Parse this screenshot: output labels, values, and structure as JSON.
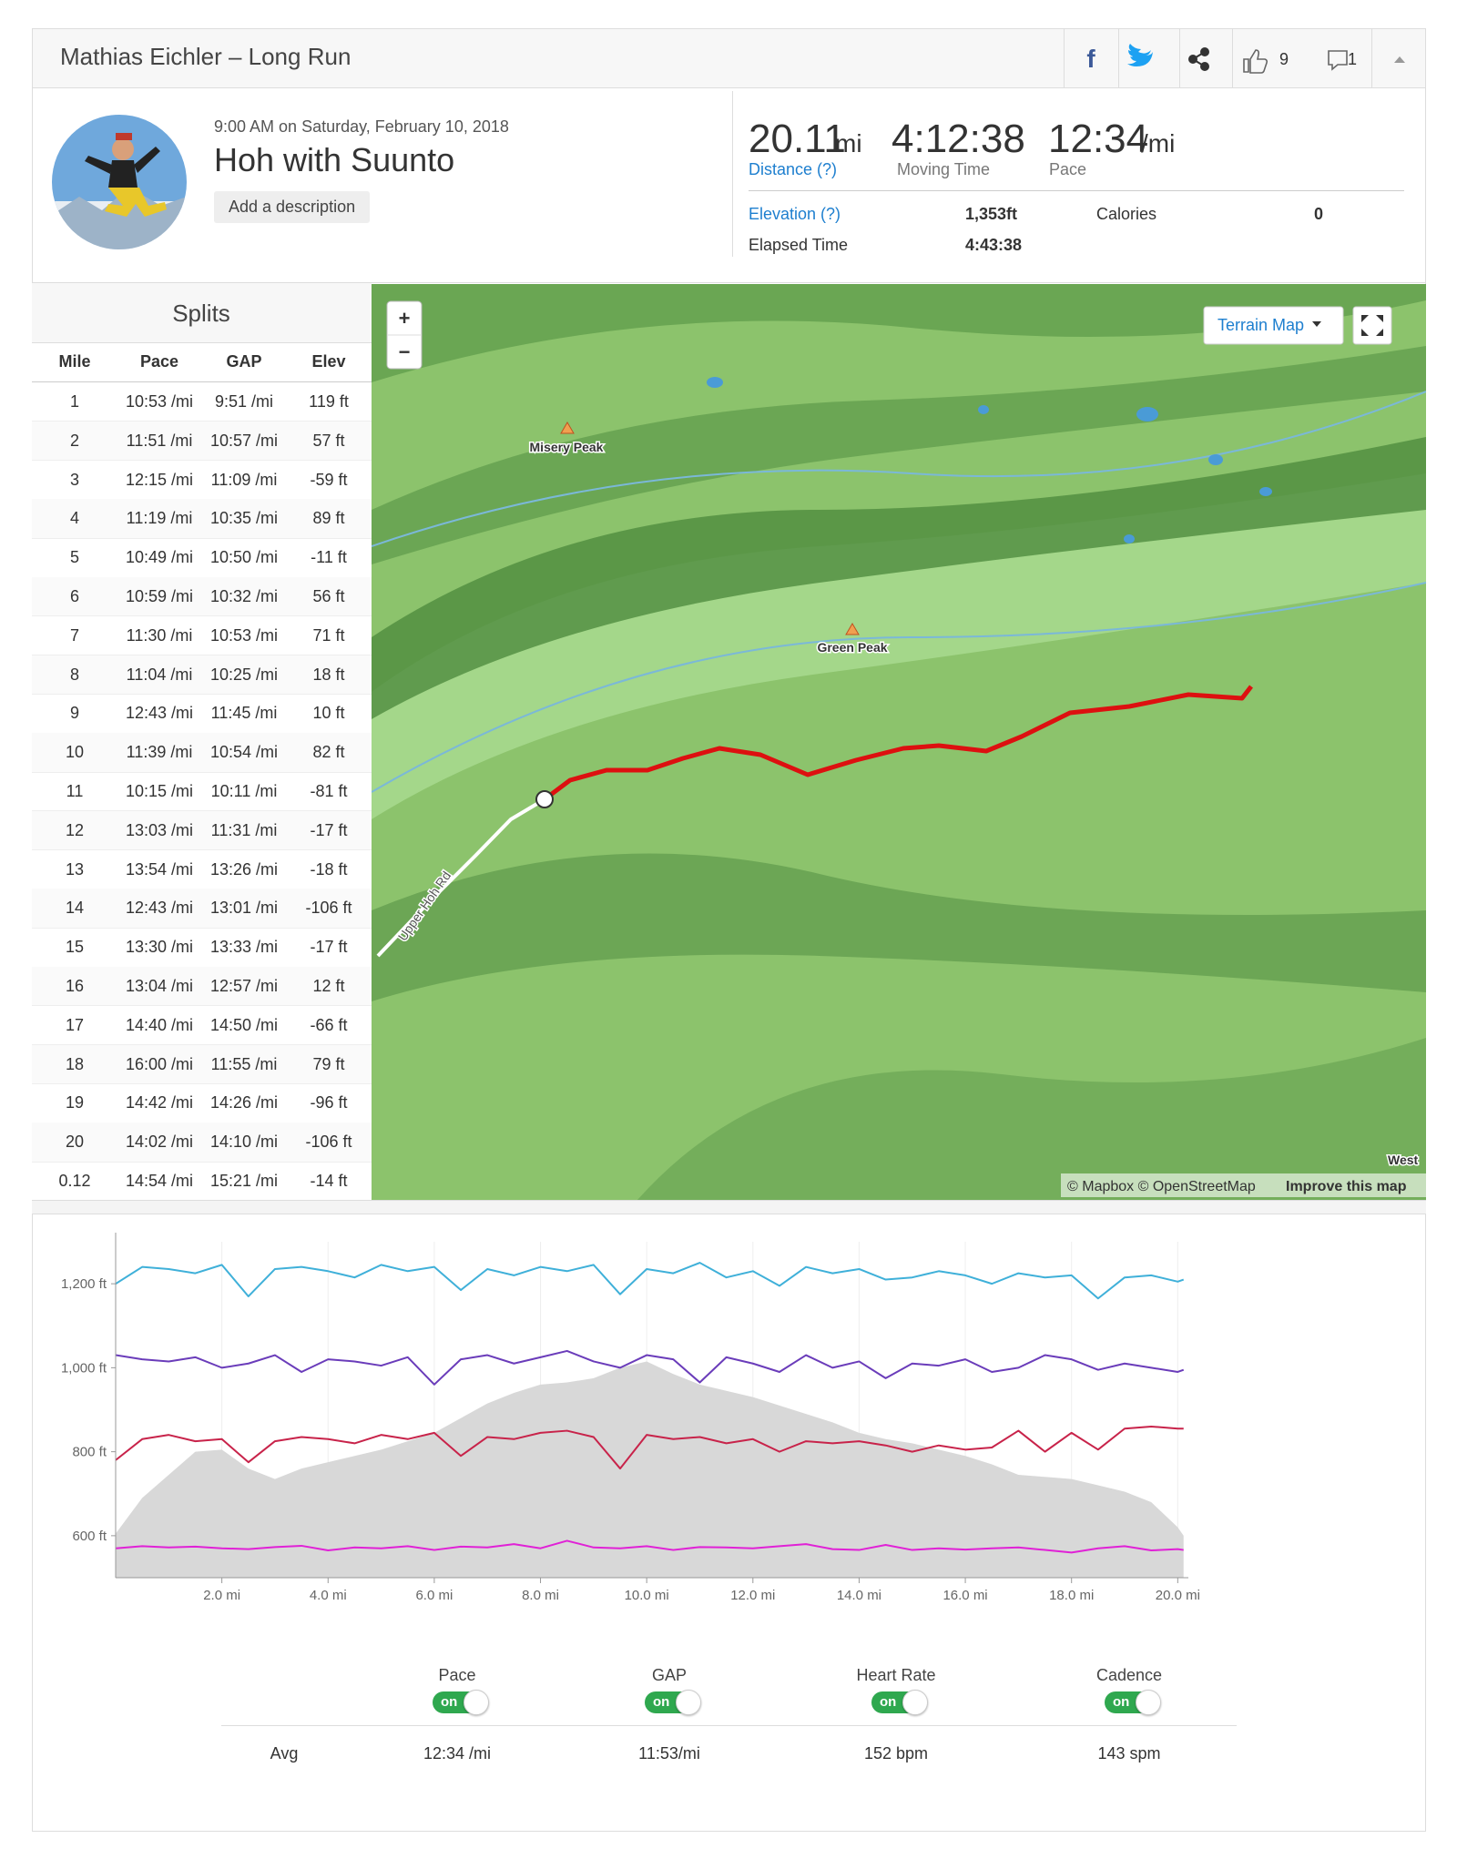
{
  "header": {
    "title": "Mathias Eichler – Long Run",
    "kudos": "9",
    "comments": "1"
  },
  "activity": {
    "datetime": "9:00 AM on Saturday, February 10, 2018",
    "name": "Hoh with Suunto",
    "add_description": "Add a description"
  },
  "stats": {
    "distance": {
      "value": "20.11",
      "unit": "mi",
      "label": "Distance (?)"
    },
    "moving_time": {
      "value": "4:12:38",
      "label": "Moving Time"
    },
    "pace": {
      "value": "12:34",
      "unit": "/mi",
      "label": "Pace"
    },
    "elevation": {
      "label": "Elevation (?)",
      "value": "1,353ft"
    },
    "calories": {
      "label": "Calories",
      "value": "0"
    },
    "elapsed": {
      "label": "Elapsed Time",
      "value": "4:43:38"
    }
  },
  "splits": {
    "title": "Splits",
    "columns": [
      "Mile",
      "Pace",
      "GAP",
      "Elev"
    ],
    "rows": [
      [
        "1",
        "10:53 /mi",
        "9:51 /mi",
        "119 ft"
      ],
      [
        "2",
        "11:51 /mi",
        "10:57 /mi",
        "57 ft"
      ],
      [
        "3",
        "12:15 /mi",
        "11:09 /mi",
        "-59 ft"
      ],
      [
        "4",
        "11:19 /mi",
        "10:35 /mi",
        "89 ft"
      ],
      [
        "5",
        "10:49 /mi",
        "10:50 /mi",
        "-11 ft"
      ],
      [
        "6",
        "10:59 /mi",
        "10:32 /mi",
        "56 ft"
      ],
      [
        "7",
        "11:30 /mi",
        "10:53 /mi",
        "71 ft"
      ],
      [
        "8",
        "11:04 /mi",
        "10:25 /mi",
        "18 ft"
      ],
      [
        "9",
        "12:43 /mi",
        "11:45 /mi",
        "10 ft"
      ],
      [
        "10",
        "11:39 /mi",
        "10:54 /mi",
        "82 ft"
      ],
      [
        "11",
        "10:15 /mi",
        "10:11 /mi",
        "-81 ft"
      ],
      [
        "12",
        "13:03 /mi",
        "11:31 /mi",
        "-17 ft"
      ],
      [
        "13",
        "13:54 /mi",
        "13:26 /mi",
        "-18 ft"
      ],
      [
        "14",
        "12:43 /mi",
        "13:01 /mi",
        "-106 ft"
      ],
      [
        "15",
        "13:30 /mi",
        "13:33 /mi",
        "-17 ft"
      ],
      [
        "16",
        "13:04 /mi",
        "12:57 /mi",
        "12 ft"
      ],
      [
        "17",
        "14:40 /mi",
        "14:50 /mi",
        "-66 ft"
      ],
      [
        "18",
        "16:00 /mi",
        "11:55 /mi",
        "79 ft"
      ],
      [
        "19",
        "14:42 /mi",
        "14:26 /mi",
        "-96 ft"
      ],
      [
        "20",
        "14:02 /mi",
        "14:10 /mi",
        "-106 ft"
      ],
      [
        "0.12",
        "14:54 /mi",
        "15:21 /mi",
        "-14 ft"
      ]
    ]
  },
  "map": {
    "layer": "Terrain Map",
    "zoom_in": "+",
    "zoom_out": "−",
    "peaks": [
      "Misery Peak",
      "Green Peak"
    ],
    "road": "Upper Hoh Rd",
    "place": "West",
    "attribution": "© Mapbox © OpenStreetMap",
    "improve": "Improve this map"
  },
  "chart_data": {
    "type": "line",
    "x": [
      0,
      0.5,
      1,
      1.5,
      2,
      2.5,
      3,
      3.5,
      4,
      4.5,
      5,
      5.5,
      6,
      6.5,
      7,
      7.5,
      8,
      8.5,
      9,
      9.5,
      10,
      10.5,
      11,
      11.5,
      12,
      12.5,
      13,
      13.5,
      14,
      14.5,
      15,
      15.5,
      16,
      16.5,
      17,
      17.5,
      18,
      18.5,
      19,
      19.5,
      20,
      20.11
    ],
    "xlim": [
      0,
      20.2
    ],
    "xticks": [
      {
        "value": 2,
        "label": "2.0 mi"
      },
      {
        "value": 4,
        "label": "4.0 mi"
      },
      {
        "value": 6,
        "label": "6.0 mi"
      },
      {
        "value": 8,
        "label": "8.0 mi"
      },
      {
        "value": 10,
        "label": "10.0 mi"
      },
      {
        "value": 12,
        "label": "12.0 mi"
      },
      {
        "value": 14,
        "label": "14.0 mi"
      },
      {
        "value": 16,
        "label": "16.0 mi"
      },
      {
        "value": 18,
        "label": "18.0 mi"
      },
      {
        "value": 20,
        "label": "20.0 mi"
      }
    ],
    "ylim": [
      500,
      1300
    ],
    "yticks": [
      {
        "value": 600,
        "label": "600 ft"
      },
      {
        "value": 800,
        "label": "800 ft"
      },
      {
        "value": 1000,
        "label": "1,000 ft"
      },
      {
        "value": 1200,
        "label": "1,200 ft"
      }
    ],
    "grid": "x",
    "elevation": {
      "type": "area",
      "color": "#d8d8d8",
      "values": [
        605,
        690,
        745,
        800,
        805,
        760,
        735,
        760,
        775,
        790,
        805,
        825,
        845,
        880,
        915,
        940,
        960,
        965,
        975,
        1000,
        1015,
        985,
        960,
        945,
        930,
        910,
        890,
        870,
        845,
        830,
        820,
        805,
        790,
        770,
        745,
        740,
        735,
        720,
        705,
        680,
        620,
        600
      ]
    },
    "series": [
      {
        "name": "Pace",
        "color": "#3fb0d9",
        "values": [
          1200,
          1240,
          1235,
          1225,
          1245,
          1170,
          1235,
          1240,
          1230,
          1215,
          1245,
          1230,
          1240,
          1185,
          1235,
          1220,
          1240,
          1230,
          1245,
          1175,
          1235,
          1225,
          1250,
          1215,
          1230,
          1195,
          1240,
          1225,
          1235,
          1210,
          1215,
          1230,
          1220,
          1200,
          1225,
          1215,
          1220,
          1165,
          1215,
          1220,
          1205,
          1210
        ]
      },
      {
        "name": "GAP",
        "color": "#6a3cba",
        "values": [
          1030,
          1020,
          1015,
          1025,
          1000,
          1010,
          1030,
          990,
          1020,
          1015,
          1005,
          1025,
          960,
          1020,
          1030,
          1010,
          1025,
          1040,
          1015,
          1000,
          1030,
          1020,
          965,
          1025,
          1010,
          990,
          1030,
          1000,
          1015,
          975,
          1010,
          1005,
          1020,
          990,
          1000,
          1030,
          1020,
          995,
          1010,
          1000,
          990,
          995
        ]
      },
      {
        "name": "Heart Rate",
        "color": "#c8234a",
        "values": [
          780,
          830,
          840,
          825,
          830,
          775,
          825,
          835,
          830,
          820,
          840,
          830,
          845,
          790,
          835,
          830,
          845,
          850,
          835,
          760,
          840,
          830,
          835,
          820,
          830,
          800,
          825,
          820,
          825,
          815,
          800,
          815,
          805,
          810,
          850,
          800,
          845,
          805,
          855,
          860,
          855,
          855
        ]
      },
      {
        "name": "Cadence",
        "color": "#e021d6",
        "values": [
          570,
          575,
          572,
          574,
          570,
          568,
          573,
          576,
          565,
          572,
          570,
          575,
          566,
          574,
          572,
          580,
          570,
          588,
          572,
          570,
          575,
          566,
          573,
          572,
          570,
          575,
          580,
          568,
          566,
          578,
          566,
          570,
          567,
          570,
          572,
          566,
          560,
          570,
          575,
          565,
          568,
          566
        ]
      }
    ]
  },
  "summary": {
    "toggle": "on",
    "avg_label": "Avg",
    "avgs": [
      "12:34 /mi",
      "11:53/mi",
      "152 bpm",
      "143 spm"
    ]
  }
}
